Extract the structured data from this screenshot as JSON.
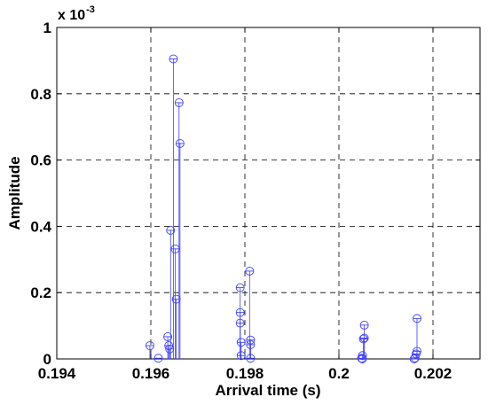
{
  "chart_data": {
    "type": "stem",
    "title": "",
    "xlabel": "Arrival time (s)",
    "ylabel": "Amplitude",
    "xlim": [
      0.194,
      0.203
    ],
    "ylim": [
      0,
      1
    ],
    "x_ticks": [
      0.194,
      0.196,
      0.198,
      0.2,
      0.202
    ],
    "x_tick_labels": [
      "0.194",
      "0.196",
      "0.198",
      "0.2",
      "0.202"
    ],
    "y_ticks": [
      0,
      0.2,
      0.4,
      0.6,
      0.8,
      1
    ],
    "y_tick_labels": [
      "0",
      "0.2",
      "0.4",
      "0.6",
      "0.8",
      "1"
    ],
    "y_scale_factor": "x 10",
    "y_scale_exponent": "-3",
    "grid": true,
    "grid_style": "dashed",
    "series": [
      {
        "marker": "circle-plus",
        "color": "#4040ff",
        "points": [
          {
            "x": 0.19598,
            "y": 0.04
          },
          {
            "x": 0.19616,
            "y": 0.002
          },
          {
            "x": 0.19636,
            "y": 0.067
          },
          {
            "x": 0.19638,
            "y": 0.04
          },
          {
            "x": 0.1964,
            "y": 0.03
          },
          {
            "x": 0.19642,
            "y": 0.388
          },
          {
            "x": 0.19648,
            "y": 0.905
          },
          {
            "x": 0.19652,
            "y": 0.332
          },
          {
            "x": 0.19654,
            "y": 0.18
          },
          {
            "x": 0.1966,
            "y": 0.773
          },
          {
            "x": 0.19662,
            "y": 0.65
          },
          {
            "x": 0.1979,
            "y": 0.215
          },
          {
            "x": 0.1979,
            "y": 0.14
          },
          {
            "x": 0.1979,
            "y": 0.108
          },
          {
            "x": 0.19792,
            "y": 0.05
          },
          {
            "x": 0.19792,
            "y": 0.01
          },
          {
            "x": 0.1981,
            "y": 0.265
          },
          {
            "x": 0.19812,
            "y": 0.057
          },
          {
            "x": 0.19812,
            "y": 0.043
          },
          {
            "x": 0.19812,
            "y": 0.002
          },
          {
            "x": 0.20048,
            "y": 0.002
          },
          {
            "x": 0.2005,
            "y": 0.01
          },
          {
            "x": 0.2005,
            "y": 0.0
          },
          {
            "x": 0.20052,
            "y": 0.06
          },
          {
            "x": 0.20054,
            "y": 0.063
          },
          {
            "x": 0.20054,
            "y": 0.102
          },
          {
            "x": 0.2016,
            "y": 0.0
          },
          {
            "x": 0.20162,
            "y": 0.003
          },
          {
            "x": 0.20164,
            "y": 0.015
          },
          {
            "x": 0.20166,
            "y": 0.023
          },
          {
            "x": 0.20166,
            "y": 0.122
          }
        ]
      }
    ]
  }
}
